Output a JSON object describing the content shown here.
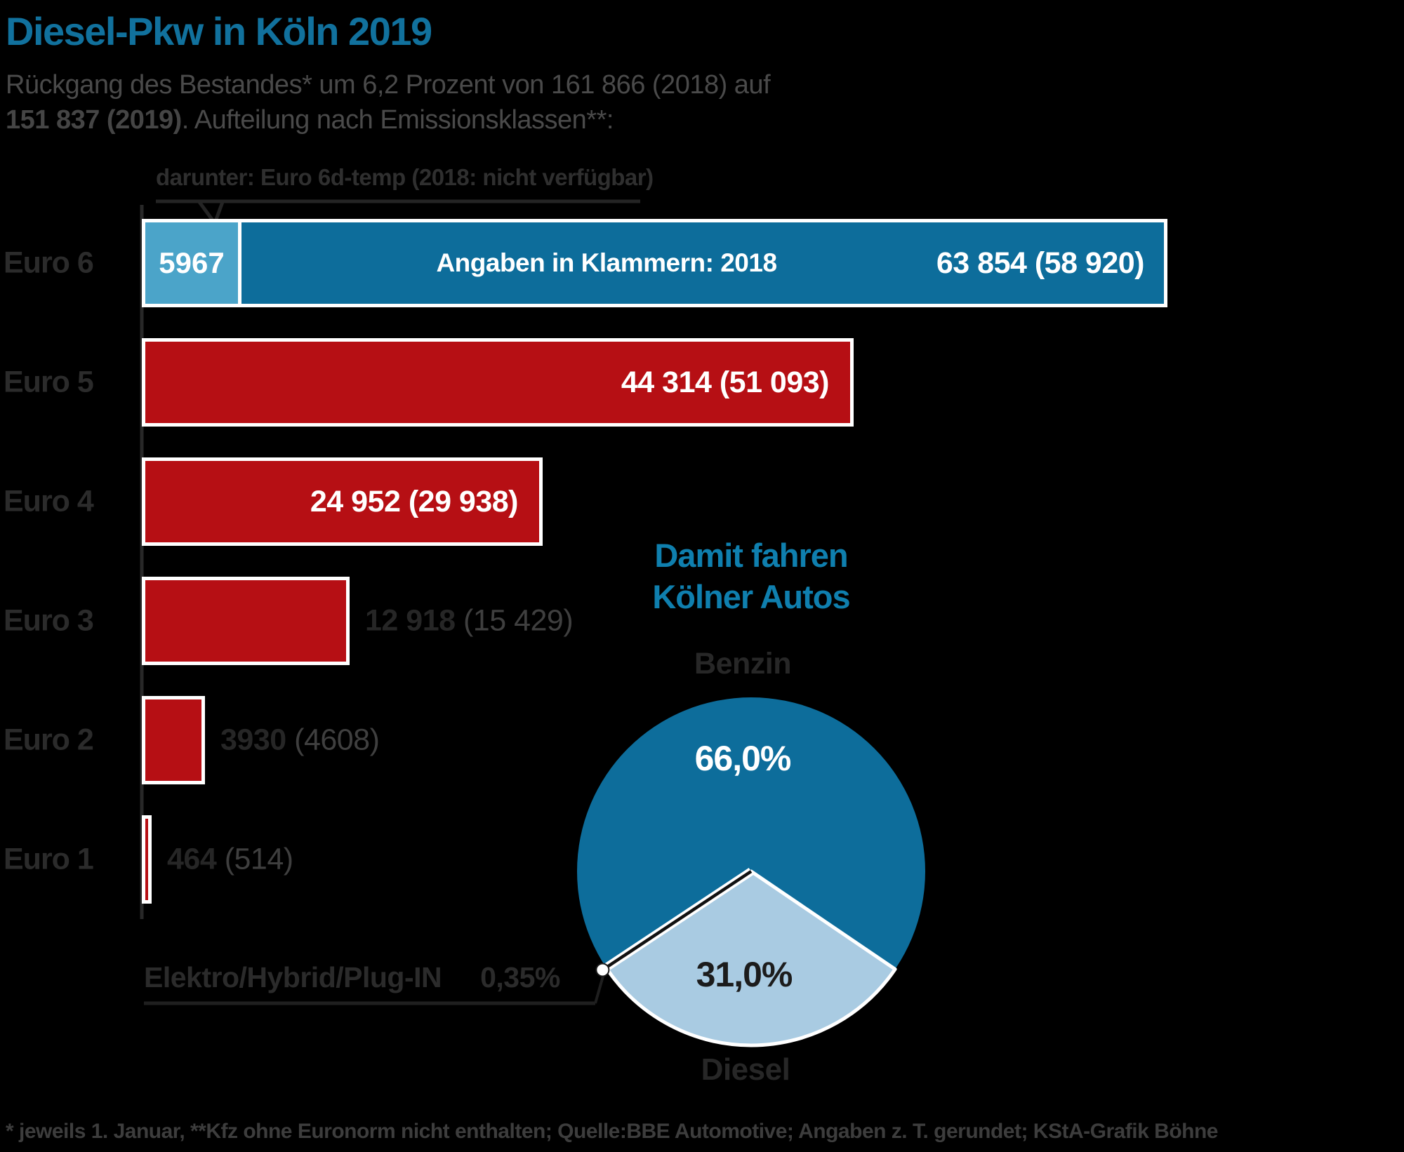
{
  "title": "Diesel-Pkw in Köln 2019",
  "subtitle": {
    "line1": "Rückgang des Bestandes* um 6,2 Prozent von 161 866 (2018) auf",
    "line2_bold": "151 837 (2019)",
    "line2_rest": ". Aufteilung nach Emissionsklassen**:"
  },
  "colors": {
    "title_blue": "#11719d",
    "bar_dark_blue": "#0d6d9b",
    "bar_light_blue": "#4ba4c9",
    "bar_red": "#b60f14",
    "pie_benzin_blue": "#0d6d9b",
    "pie_diesel_pale_blue": "#a9cbe2",
    "accent_text_blue": "#0f7fae"
  },
  "chart_data": [
    {
      "type": "bar",
      "orientation": "horizontal",
      "categories": [
        "Euro 6",
        "Euro 5",
        "Euro 4",
        "Euro 3",
        "Euro 2",
        "Euro 1"
      ],
      "series": [
        {
          "name": "2019",
          "values": [
            63854,
            44314,
            24952,
            12918,
            3930,
            464
          ]
        },
        {
          "name": "2018 (in Klammern)",
          "values": [
            58920,
            51093,
            29938,
            15429,
            4608,
            514
          ]
        }
      ],
      "value_labels": [
        "63 854 (58 920)",
        "44 314 (51 093)",
        "24 952 (29 938)",
        "12 918 (15 429)",
        "3930 (4608)",
        "464 (514)"
      ],
      "value_labels_bold_part": [
        "",
        "",
        "",
        "12 918",
        "3930",
        "464"
      ],
      "value_labels_paren_part": [
        "",
        "",
        "",
        " (15 429)",
        " (4608)",
        " (514)"
      ],
      "label_placement": [
        "inside",
        "inside",
        "inside",
        "outside",
        "outside",
        "outside"
      ],
      "euro6_breakdown": {
        "label": "darunter: Euro 6d-temp (2018: nicht verfügbar)",
        "value": 5967,
        "value_label": "5967"
      },
      "in_bar_note": "Angaben in Klammern: 2018",
      "xlim": [
        0,
        65000
      ],
      "grid": false
    },
    {
      "type": "pie",
      "title_lines": [
        "Damit fahren",
        "Kölner Autos"
      ],
      "labels": [
        "Benzin",
        "Diesel",
        "Elektro/Hybrid/Plug-IN"
      ],
      "values_percent": [
        66.0,
        31.0,
        0.35
      ],
      "display_values": [
        "66,0%",
        "31,0%",
        "0,35%"
      ],
      "legend_position": "around"
    }
  ],
  "footer": "* jeweils 1. Januar,  **Kfz ohne Euronorm nicht enthalten; Quelle:BBE Automotive; Angaben z. T. gerundet; KStA-Grafik Böhne"
}
